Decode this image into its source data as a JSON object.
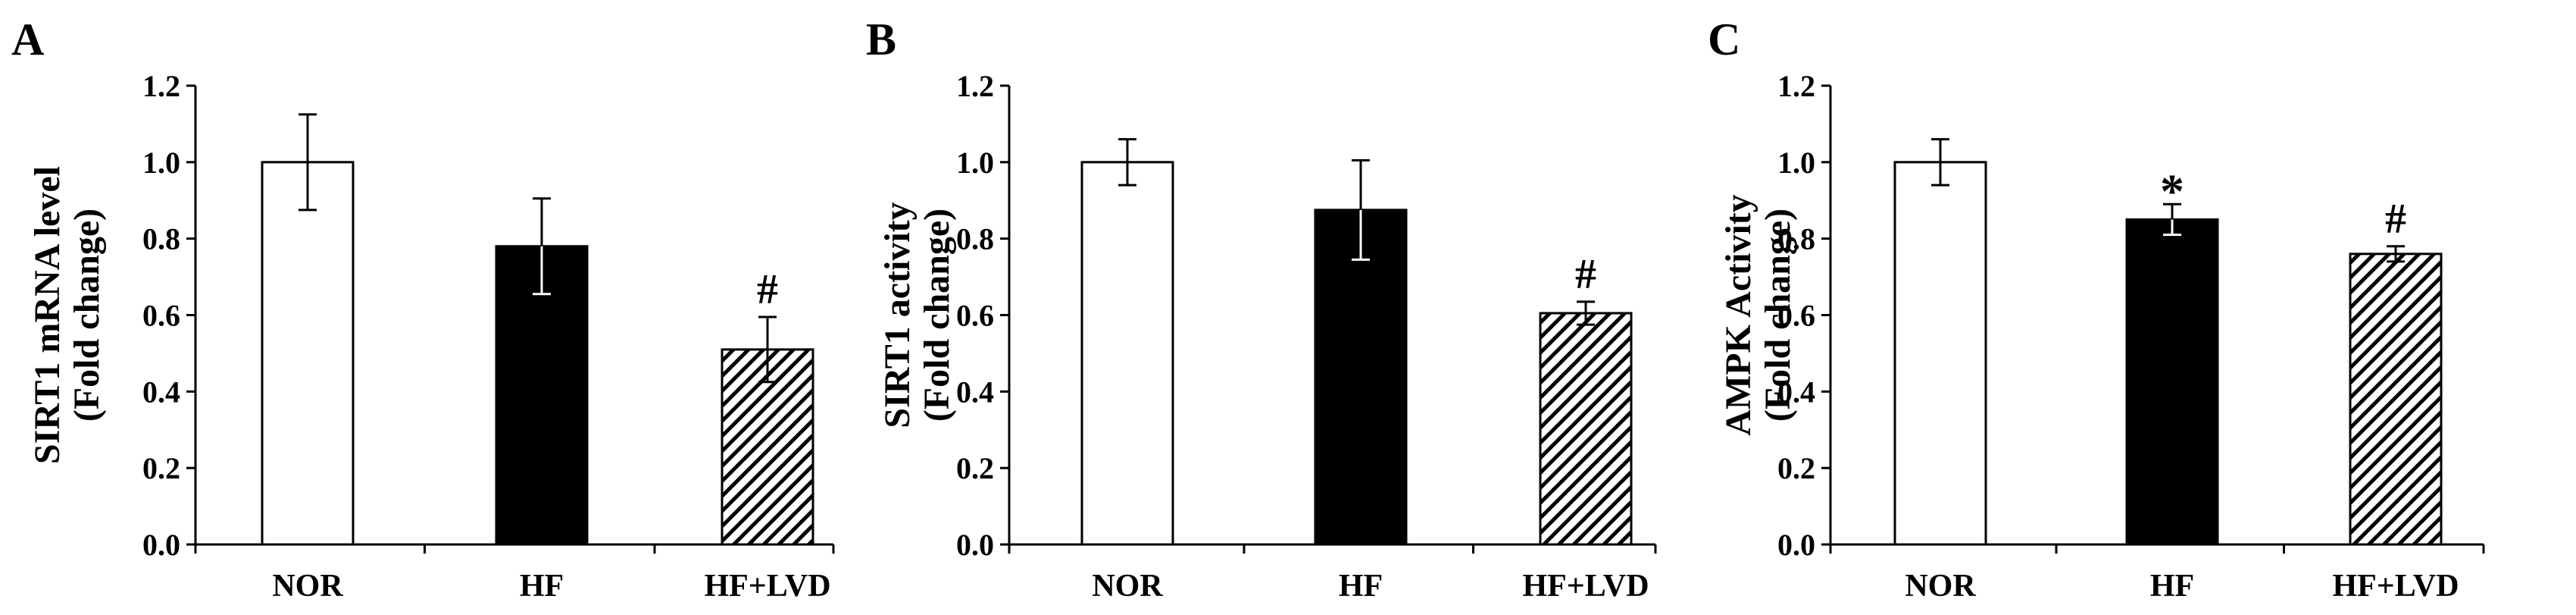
{
  "chart_data": [
    {
      "type": "bar",
      "panel_label": "A",
      "ylabel": "SIRT1 mRNA level",
      "ylabel2": "(Fold change)",
      "categories": [
        "NOR",
        "HF",
        "HF+LVD"
      ],
      "values": [
        1.0,
        0.78,
        0.51
      ],
      "errors": [
        0.125,
        0.125,
        0.085
      ],
      "annotations": [
        "",
        "",
        "#"
      ],
      "fills": [
        "white",
        "black",
        "hatch"
      ],
      "ylim": [
        0,
        1.2
      ],
      "yticks": [
        "0.0",
        "0.2",
        "0.4",
        "0.6",
        "0.8",
        "1.0",
        "1.2"
      ]
    },
    {
      "type": "bar",
      "panel_label": "B",
      "ylabel": "SIRT1 activity",
      "ylabel2": "(Fold change)",
      "categories": [
        "NOR",
        "HF",
        "HF+LVD"
      ],
      "values": [
        1.0,
        0.875,
        0.605
      ],
      "errors": [
        0.06,
        0.13,
        0.03
      ],
      "annotations": [
        "",
        "",
        "#"
      ],
      "fills": [
        "white",
        "black",
        "hatch"
      ],
      "ylim": [
        0,
        1.2
      ],
      "yticks": [
        "0.0",
        "0.2",
        "0.4",
        "0.6",
        "0.8",
        "1.0",
        "1.2"
      ]
    },
    {
      "type": "bar",
      "panel_label": "C",
      "ylabel": "AMPK Activity",
      "ylabel2": "(Fold change)",
      "categories": [
        "NOR",
        "HF",
        "HF+LVD"
      ],
      "values": [
        1.0,
        0.85,
        0.76
      ],
      "errors": [
        0.06,
        0.04,
        0.02
      ],
      "annotations": [
        "",
        "*",
        "#"
      ],
      "fills": [
        "white",
        "black",
        "hatch"
      ],
      "ylim": [
        0,
        1.2
      ],
      "yticks": [
        "0.0",
        "0.2",
        "0.4",
        "0.6",
        "0.8",
        "1.0",
        "1.2"
      ]
    }
  ]
}
